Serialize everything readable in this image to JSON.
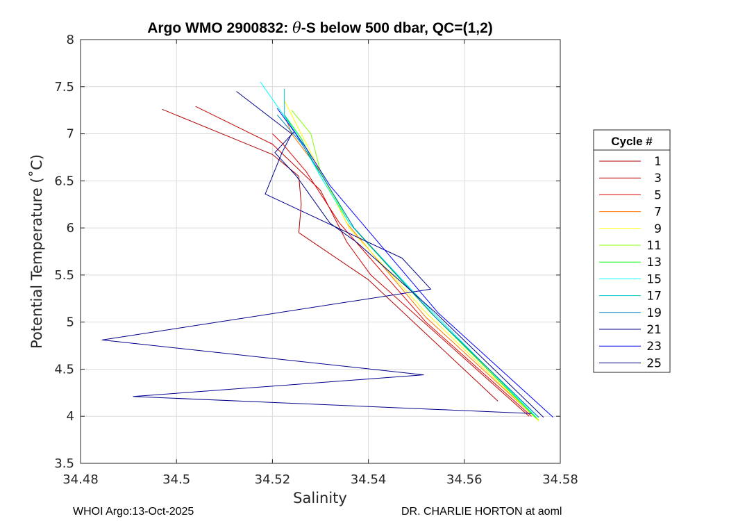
{
  "chart_data": {
    "type": "line",
    "title_prefix": "Argo WMO 2900832: ",
    "title_symbol": "θ",
    "title_suffix": "-S below 500 dbar,  QC=(1,2)",
    "xlabel": "Salinity",
    "ylabel": "Potential Temperature (˚C)",
    "xlim": [
      34.48,
      34.58
    ],
    "ylim": [
      3.5,
      8
    ],
    "xticks": [
      34.48,
      34.5,
      34.52,
      34.54,
      34.56,
      34.58
    ],
    "xtick_labels": [
      "34.48",
      "34.5",
      "34.52",
      "34.54",
      "34.56",
      "34.58"
    ],
    "yticks": [
      3.5,
      4,
      4.5,
      5,
      5.5,
      6,
      6.5,
      7,
      7.5,
      8
    ],
    "ytick_labels": [
      "3.5",
      "4",
      "4.5",
      "5",
      "5.5",
      "6",
      "6.5",
      "7",
      "7.5",
      "8"
    ],
    "grid": true,
    "legend_title": "Cycle #",
    "legend_position": "outside-right",
    "series": [
      {
        "name": "1",
        "color": "#b00000",
        "x": [
          34.497,
          34.52,
          34.5255,
          34.526,
          34.5255,
          34.54,
          34.567
        ],
        "y": [
          7.26,
          6.78,
          6.55,
          6.25,
          5.95,
          5.45,
          4.16
        ]
      },
      {
        "name": "3",
        "color": "#c80000",
        "x": [
          34.504,
          34.52,
          34.53,
          34.5355,
          34.5405,
          34.5735
        ],
        "y": [
          7.29,
          6.89,
          6.4,
          5.85,
          5.5,
          4.0
        ]
      },
      {
        "name": "5",
        "color": "#e00000",
        "x": [
          34.52,
          34.522,
          34.527,
          34.534,
          34.552,
          34.574
        ],
        "y": [
          7.0,
          6.9,
          6.6,
          6.05,
          5.0,
          4.0
        ]
      },
      {
        "name": "7",
        "color": "#ff7700",
        "x": [
          34.5225,
          34.524,
          34.53,
          34.5355,
          34.552,
          34.5745
        ],
        "y": [
          7.2,
          7.0,
          6.6,
          6.05,
          5.05,
          4.0
        ]
      },
      {
        "name": "9",
        "color": "#ffff00",
        "x": [
          34.5225,
          34.526,
          34.531,
          34.536,
          34.552,
          34.5755
        ],
        "y": [
          7.35,
          7.0,
          6.5,
          6.0,
          5.1,
          3.95
        ]
      },
      {
        "name": "11",
        "color": "#80ff00",
        "x": [
          34.524,
          34.528,
          34.53,
          34.536,
          34.553,
          34.5755
        ],
        "y": [
          7.25,
          7.0,
          6.6,
          6.05,
          5.1,
          3.96
        ]
      },
      {
        "name": "13",
        "color": "#00ff00",
        "x": [
          34.5225,
          34.526,
          34.53,
          34.536,
          34.553,
          34.575
        ],
        "y": [
          7.2,
          6.95,
          6.55,
          6.05,
          5.1,
          3.98
        ]
      },
      {
        "name": "15",
        "color": "#00ffff",
        "x": [
          34.5175,
          34.525,
          34.53,
          34.536,
          34.5535,
          34.575
        ],
        "y": [
          7.55,
          7.0,
          6.55,
          6.05,
          5.1,
          3.99
        ]
      },
      {
        "name": "17",
        "color": "#00c0c0",
        "x": [
          34.5225,
          34.5225,
          34.526,
          34.531,
          34.537,
          34.554,
          34.5755
        ],
        "y": [
          7.48,
          7.2,
          6.9,
          6.5,
          6.0,
          5.05,
          3.99
        ]
      },
      {
        "name": "19",
        "color": "#0080c0",
        "x": [
          34.521,
          34.526,
          34.531,
          34.537,
          34.554,
          34.5755
        ],
        "y": [
          7.2,
          6.9,
          6.5,
          6.0,
          5.05,
          3.99
        ]
      },
      {
        "name": "21",
        "color": "#00008b",
        "x": [
          34.5125,
          34.524,
          34.522,
          34.5185,
          34.547,
          34.553,
          34.4845,
          34.5515,
          34.491,
          34.574
        ],
        "y": [
          7.45,
          7.0,
          6.8,
          6.36,
          5.68,
          5.35,
          4.81,
          4.44,
          4.21,
          4.03
        ]
      },
      {
        "name": "23",
        "color": "#0000ff",
        "x": [
          34.521,
          34.527,
          34.532,
          34.537,
          34.5545,
          34.5785
        ],
        "y": [
          7.27,
          6.85,
          6.45,
          6.15,
          5.1,
          3.99
        ]
      },
      {
        "name": "25",
        "color": "#000080",
        "x": [
          34.5245,
          34.5205,
          34.525,
          34.532,
          34.5375,
          34.554,
          34.5765
        ],
        "y": [
          7.02,
          6.8,
          6.55,
          6.05,
          5.85,
          5.1,
          3.99
        ]
      }
    ]
  },
  "footer": {
    "left": "WHOI Argo:13-Oct-2025",
    "right": "DR. CHARLIE HORTON at aoml"
  }
}
